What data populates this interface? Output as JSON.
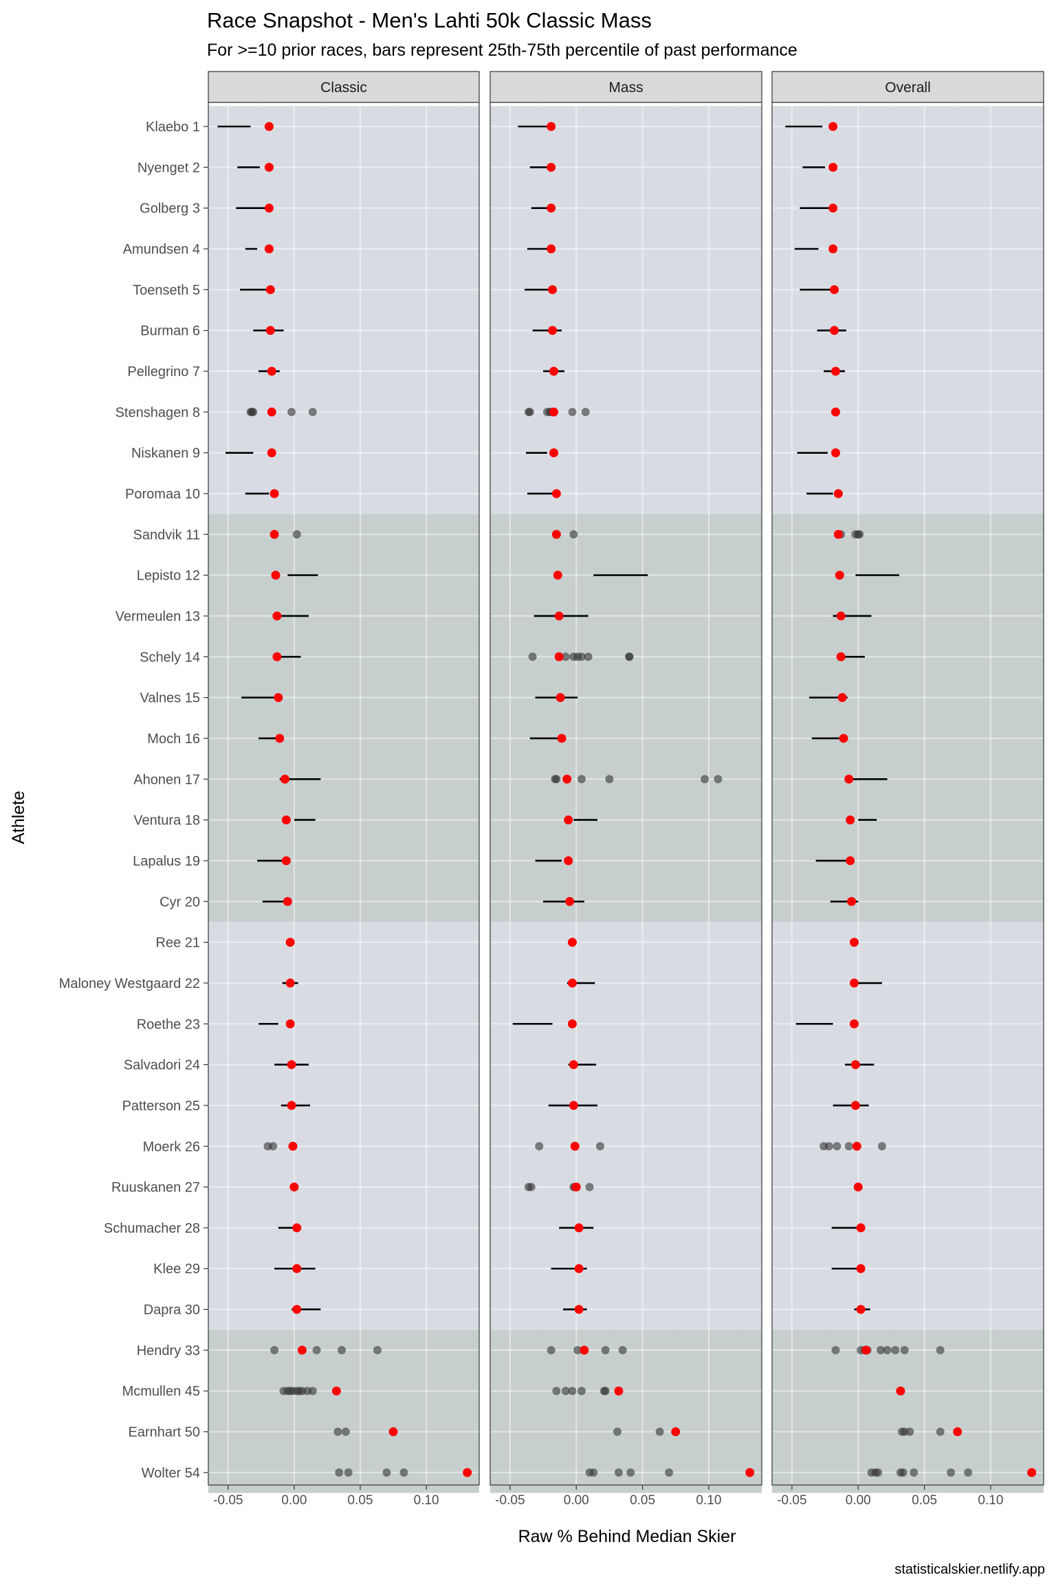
{
  "title": "Race Snapshot -  Men's Lahti 50k Classic Mass",
  "subtitle": "For >=10 prior races, bars represent 25th-75th percentile of past performance",
  "caption": "statisticalskier.netlify.app",
  "colors": {
    "band_light": "#d8dce2",
    "band_dark": "#c7cfce",
    "strip_fill": "#d9d9d9",
    "expected_point": "#ff0000",
    "past_point": "#333333",
    "bar": "#000000",
    "grid": "#ebebeb"
  },
  "chart_data": {
    "type": "scatter",
    "xlabel": "Raw % Behind Median Skier",
    "ylabel": "Athlete",
    "xlim": [
      -0.065,
      0.14
    ],
    "xticks": [
      -0.05,
      0.0,
      0.05,
      0.1
    ],
    "xtick_labels": [
      "-0.05",
      "0.00",
      "0.05",
      "0.10"
    ],
    "grid": true,
    "facets": [
      "Classic",
      "Mass",
      "Overall"
    ],
    "athletes": [
      "Klaebo 1",
      "Nyenget 2",
      "Golberg 3",
      "Amundsen 4",
      "Toenseth 5",
      "Burman 6",
      "Pellegrino 7",
      "Stenshagen 8",
      "Niskanen 9",
      "Poromaa 10",
      "Sandvik 11",
      "Lepisto 12",
      "Vermeulen 13",
      "Schely 14",
      "Valnes 15",
      "Moch 16",
      "Ahonen 17",
      "Ventura 18",
      "Lapalus 19",
      "Cyr 20",
      "Ree 21",
      "Maloney Westgaard 22",
      "Roethe 23",
      "Salvadori 24",
      "Patterson 25",
      "Moerk 26",
      "Ruuskanen 27",
      "Schumacher 28",
      "Klee 29",
      "Dapra 30",
      "Hendry 33",
      "Mcmullen 45",
      "Earnhart 50",
      "Wolter 54"
    ],
    "expected": [
      -0.019,
      -0.019,
      -0.019,
      -0.019,
      -0.018,
      -0.018,
      -0.017,
      -0.017,
      -0.017,
      -0.015,
      -0.015,
      -0.014,
      -0.013,
      -0.013,
      -0.012,
      -0.011,
      -0.007,
      -0.006,
      -0.006,
      -0.005,
      -0.003,
      -0.003,
      -0.003,
      -0.002,
      -0.002,
      -0.001,
      0.0,
      0.002,
      0.002,
      0.002,
      0.006,
      0.032,
      0.075,
      0.131
    ],
    "bands": [
      {
        "from": 0,
        "to": 9,
        "shade": "light"
      },
      {
        "from": 10,
        "to": 19,
        "shade": "dark"
      },
      {
        "from": 20,
        "to": 29,
        "shade": "light"
      },
      {
        "from": 30,
        "to": 33,
        "shade": "dark"
      }
    ],
    "panels": {
      "Classic": {
        "bars": [
          [
            -0.058,
            -0.033
          ],
          [
            -0.043,
            -0.026
          ],
          [
            -0.044,
            -0.022
          ],
          [
            -0.037,
            -0.028
          ],
          [
            -0.041,
            -0.021
          ],
          [
            -0.031,
            -0.008
          ],
          [
            -0.027,
            -0.011
          ],
          null,
          [
            -0.052,
            -0.031
          ],
          [
            -0.037,
            -0.019
          ],
          null,
          [
            -0.005,
            0.018
          ],
          [
            -0.013,
            0.011
          ],
          [
            -0.012,
            0.005
          ],
          [
            -0.04,
            -0.013
          ],
          [
            -0.027,
            -0.01
          ],
          [
            -0.011,
            0.02
          ],
          [
            0.0,
            0.016
          ],
          [
            -0.028,
            -0.008
          ],
          [
            -0.024,
            -0.005
          ],
          null,
          [
            -0.009,
            0.003
          ],
          [
            -0.027,
            -0.012
          ],
          [
            -0.015,
            0.011
          ],
          [
            -0.01,
            0.012
          ],
          null,
          null,
          [
            -0.012,
            0.004
          ],
          [
            -0.015,
            0.016
          ],
          [
            -0.002,
            0.02
          ],
          null,
          null,
          null,
          null
        ],
        "points": [
          [],
          [],
          [],
          [],
          [],
          [],
          [],
          [
            -0.033,
            -0.031,
            -0.032,
            -0.002,
            0.014
          ],
          [],
          [],
          [
            0.002
          ],
          [],
          [],
          [],
          [],
          [],
          [],
          [],
          [],
          [],
          [],
          [],
          [],
          [],
          [],
          [
            -0.02,
            -0.016
          ],
          [],
          [],
          [],
          [],
          [
            -0.015,
            0.017,
            0.036,
            0.063
          ],
          [
            -0.008,
            -0.005,
            -0.003,
            -0.001,
            0.002,
            0.004,
            0.006,
            0.01,
            0.014
          ],
          [
            0.033,
            0.039
          ],
          [
            0.034,
            0.041,
            0.07,
            0.083
          ]
        ]
      },
      "Mass": {
        "bars": [
          [
            -0.044,
            -0.022
          ],
          [
            -0.035,
            -0.022
          ],
          [
            -0.034,
            -0.021
          ],
          [
            -0.037,
            -0.02
          ],
          [
            -0.039,
            -0.021
          ],
          [
            -0.033,
            -0.011
          ],
          [
            -0.025,
            -0.009
          ],
          null,
          [
            -0.038,
            -0.022
          ],
          [
            -0.037,
            -0.016
          ],
          null,
          [
            0.013,
            0.054
          ],
          [
            -0.032,
            0.009
          ],
          null,
          [
            -0.031,
            0.001
          ],
          [
            -0.035,
            -0.014
          ],
          null,
          [
            -0.002,
            0.016
          ],
          [
            -0.031,
            -0.011
          ],
          [
            -0.025,
            0.006
          ],
          null,
          [
            -0.007,
            0.014
          ],
          [
            -0.048,
            -0.018
          ],
          [
            -0.006,
            0.015
          ],
          [
            -0.021,
            0.016
          ],
          null,
          null,
          [
            -0.013,
            0.013
          ],
          [
            -0.019,
            0.008
          ],
          [
            -0.01,
            0.008
          ],
          null,
          null,
          null,
          null
        ],
        "points": [
          [],
          [],
          [],
          [],
          [],
          [],
          [],
          [
            -0.036,
            -0.035,
            -0.022,
            -0.02,
            -0.019,
            -0.017,
            -0.003,
            0.007
          ],
          [],
          [],
          [
            -0.002
          ],
          [],
          [],
          [
            -0.033,
            -0.008,
            -0.002,
            0.001,
            0.004,
            0.009,
            0.04,
            0.04
          ],
          [],
          [],
          [
            -0.016,
            -0.015,
            0.004,
            0.025,
            0.097,
            0.107
          ],
          [],
          [],
          [],
          [],
          [],
          [],
          [],
          [],
          [
            -0.028,
            0.018
          ],
          [
            -0.036,
            -0.034,
            -0.001,
            -0.002,
            0.0,
            0.01
          ],
          [],
          [],
          [],
          [
            -0.019,
            0.001,
            0.022,
            0.035
          ],
          [
            -0.015,
            -0.008,
            -0.003,
            0.004,
            0.021,
            0.022
          ],
          [
            0.031,
            0.063
          ],
          [
            0.01,
            0.013,
            0.032,
            0.041,
            0.07
          ]
        ]
      },
      "Overall": {
        "bars": [
          [
            -0.055,
            -0.027
          ],
          [
            -0.042,
            -0.025
          ],
          [
            -0.044,
            -0.021
          ],
          [
            -0.048,
            -0.03
          ],
          [
            -0.044,
            -0.021
          ],
          [
            -0.031,
            -0.009
          ],
          [
            -0.026,
            -0.01
          ],
          null,
          [
            -0.046,
            -0.023
          ],
          [
            -0.039,
            -0.019
          ],
          null,
          [
            -0.002,
            0.031
          ],
          [
            -0.019,
            0.01
          ],
          [
            -0.011,
            0.005
          ],
          [
            -0.037,
            -0.008
          ],
          [
            -0.035,
            -0.01
          ],
          [
            -0.004,
            0.022
          ],
          [
            0.0,
            0.014
          ],
          [
            -0.032,
            -0.008
          ],
          [
            -0.021,
            0.0
          ],
          null,
          [
            -0.005,
            0.018
          ],
          [
            -0.047,
            -0.019
          ],
          [
            -0.01,
            0.012
          ],
          [
            -0.019,
            0.008
          ],
          null,
          null,
          [
            -0.02,
            0.002
          ],
          [
            -0.02,
            0.005
          ],
          [
            -0.003,
            0.009
          ],
          null,
          null,
          null,
          null
        ],
        "points": [
          [],
          [],
          [],
          [],
          [],
          [],
          [],
          [],
          [],
          [],
          [
            -0.015,
            -0.013,
            -0.002,
            0.0,
            0.001
          ],
          [],
          [],
          [],
          [],
          [],
          [],
          [],
          [],
          [],
          [],
          [],
          [],
          [],
          [],
          [
            -0.026,
            -0.022,
            -0.016,
            -0.007,
            0.018
          ],
          [],
          [],
          [],
          [],
          [
            -0.017,
            0.002,
            0.005,
            0.007,
            0.017,
            0.022,
            0.028,
            0.035,
            0.062
          ],
          [],
          [
            0.033,
            0.035,
            0.039,
            0.062
          ],
          [
            0.01,
            0.013,
            0.015,
            0.032,
            0.034,
            0.042,
            0.07,
            0.083
          ]
        ]
      }
    }
  }
}
